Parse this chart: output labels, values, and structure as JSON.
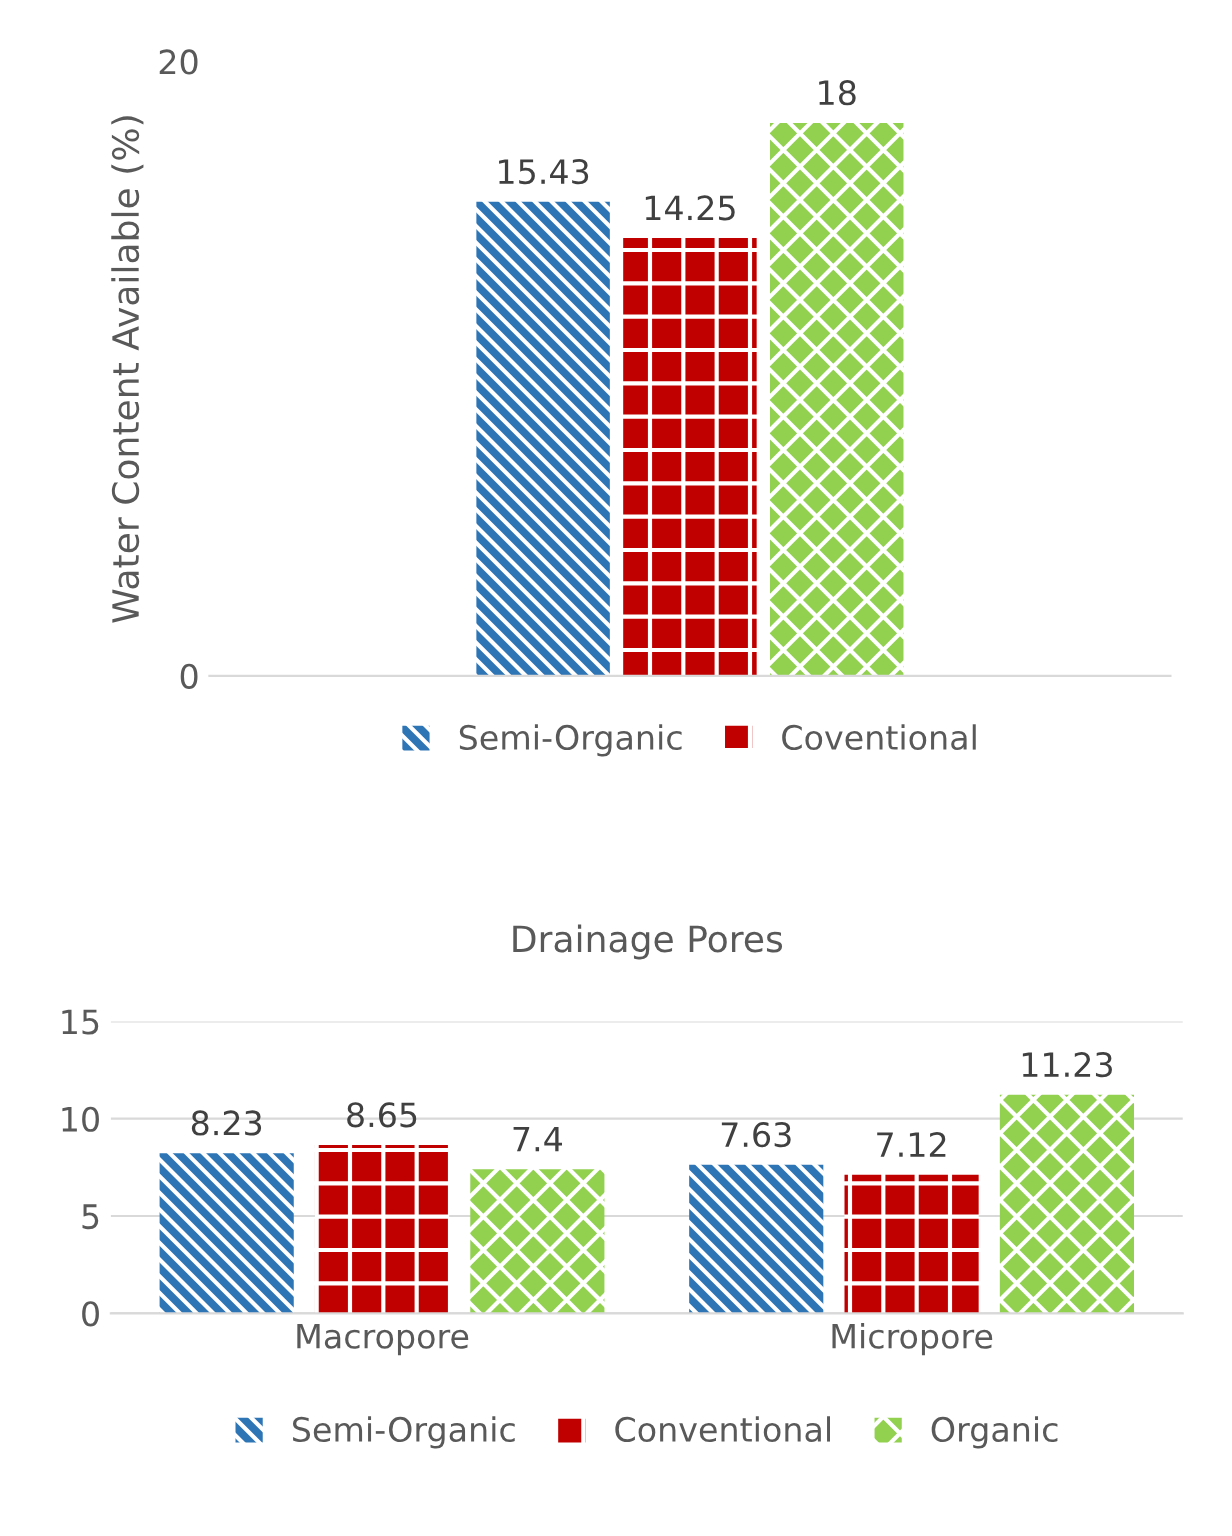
{
  "chart_data": [
    {
      "type": "bar",
      "ylabel": "Water Content Available (%)",
      "categories": [
        null
      ],
      "ylim": [
        0,
        20
      ],
      "yticks": [
        0,
        20
      ],
      "grid": false,
      "legend": "bottom",
      "data_labels": true,
      "series": [
        {
          "name": "Semi-Organic",
          "color": "#2e75b6",
          "values": [
            15.43
          ]
        },
        {
          "name": "Coventional",
          "color": "#c00000",
          "values": [
            14.25
          ]
        },
        {
          "color": "#92d050",
          "values": [
            18
          ]
        }
      ]
    },
    {
      "type": "bar",
      "title": "Drainage Pores",
      "categories": [
        "Macropore",
        "Micropore"
      ],
      "ylim": [
        0,
        15
      ],
      "yticks": [
        0,
        5,
        10,
        15
      ],
      "grid": "y",
      "legend": "bottom",
      "data_labels": true,
      "series": [
        {
          "name": "Semi-Organic",
          "color": "#2e75b6",
          "values": [
            8.23,
            7.63
          ]
        },
        {
          "name": "Conventional",
          "color": "#c00000",
          "values": [
            8.65,
            7.12
          ]
        },
        {
          "name": "Organic",
          "color": "#92d050",
          "values": [
            7.4,
            11.23
          ]
        }
      ]
    }
  ]
}
